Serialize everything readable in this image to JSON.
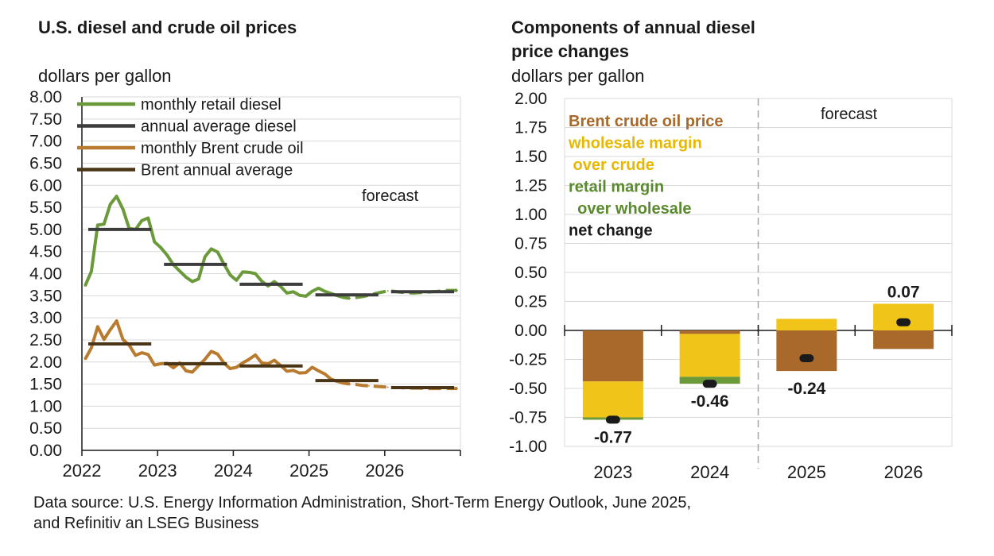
{
  "source_lines": [
    "Data source: U.S. Energy Information Administration, Short-Term Energy Outlook, June 2025,",
    "and Refinitiv an LSEG Business"
  ],
  "colors": {
    "retail": "#6a9a3a",
    "annual_diesel": "#3d3d3d",
    "brent": "#b87b2f",
    "brent_annual": "#4a3517",
    "crude_bar": "#a8692b",
    "wholesale_bar": "#f0c419",
    "retail_bar": "#6a9a3a",
    "net_marker": "#1a1a1a",
    "crude_text": "#a8692b",
    "wholesale_text": "#e8b800",
    "retail_text": "#5a8a2e"
  },
  "chart_data": [
    {
      "type": "line",
      "title": "U.S. diesel and crude oil prices",
      "ylabel": "dollars per gallon",
      "ylim": [
        0,
        8
      ],
      "yticks": [
        "0.00",
        "0.50",
        "1.00",
        "1.50",
        "2.00",
        "2.50",
        "3.00",
        "3.50",
        "4.00",
        "4.50",
        "5.00",
        "5.50",
        "6.00",
        "6.50",
        "7.00",
        "7.50",
        "8.00"
      ],
      "xlim": [
        2022,
        2027
      ],
      "xticks": [
        "2022",
        "2023",
        "2024",
        "2025",
        "2026"
      ],
      "forecast_label": "forecast",
      "forecast_start": 2025.4,
      "series": [
        {
          "name": "monthly retail diesel",
          "style": "monthly",
          "color_key": "retail",
          "values": [
            3.72,
            4.05,
            5.1,
            5.12,
            5.57,
            5.75,
            5.46,
            5.02,
            5.0,
            5.2,
            5.26,
            4.72,
            4.59,
            4.42,
            4.2,
            4.06,
            3.92,
            3.82,
            3.88,
            4.38,
            4.56,
            4.49,
            4.22,
            3.97,
            3.85,
            4.04,
            4.03,
            4.0,
            3.83,
            3.72,
            3.82,
            3.71,
            3.56,
            3.59,
            3.51,
            3.49,
            3.6,
            3.67,
            3.6,
            3.55,
            3.5,
            3.46,
            3.44,
            3.46,
            3.48,
            3.51,
            3.55,
            3.58,
            3.61,
            3.6,
            3.58,
            3.57,
            3.56,
            3.57,
            3.58,
            3.59,
            3.6,
            3.62,
            3.62,
            3.62
          ]
        },
        {
          "name": "annual average diesel",
          "style": "annual",
          "color_key": "annual_diesel",
          "values": [
            5.0,
            4.21,
            3.76,
            3.52,
            3.59
          ]
        },
        {
          "name": "monthly Brent crude oil",
          "style": "monthly",
          "color_key": "brent",
          "values": [
            2.06,
            2.32,
            2.8,
            2.51,
            2.73,
            2.93,
            2.51,
            2.38,
            2.15,
            2.21,
            2.17,
            1.93,
            1.96,
            1.97,
            1.87,
            1.98,
            1.8,
            1.77,
            1.92,
            2.06,
            2.24,
            2.18,
            1.98,
            1.85,
            1.88,
            1.98,
            2.06,
            2.16,
            1.98,
            1.96,
            2.04,
            1.92,
            1.79,
            1.81,
            1.75,
            1.76,
            1.88,
            1.8,
            1.73,
            1.61,
            1.56,
            1.52,
            1.5,
            1.49,
            1.47,
            1.46,
            1.45,
            1.44,
            1.43,
            1.42,
            1.42,
            1.41,
            1.41,
            1.41,
            1.4,
            1.4,
            1.4,
            1.4,
            1.4,
            1.4
          ]
        },
        {
          "name": "Brent annual average",
          "style": "annual",
          "color_key": "brent_annual",
          "values": [
            2.41,
            1.96,
            1.91,
            1.58,
            1.42
          ]
        }
      ]
    },
    {
      "type": "stacked-bar",
      "title_lines": [
        "Components of annual diesel",
        "price changes"
      ],
      "ylabel": "dollars per gallon",
      "ylim": [
        -1.0,
        2.0
      ],
      "yticks": [
        "-1.00",
        "-0.75",
        "-0.50",
        "-0.25",
        "0.00",
        "0.25",
        "0.50",
        "0.75",
        "1.00",
        "1.25",
        "1.50",
        "1.75",
        "2.00"
      ],
      "categories": [
        "2023",
        "2024",
        "2025",
        "2026"
      ],
      "forecast_label": "forecast",
      "legend_lines": [
        {
          "text": "Brent crude oil price",
          "color_key": "crude_text"
        },
        {
          "text": "wholesale margin",
          "color_key": "wholesale_text"
        },
        {
          "text": " over crude",
          "color_key": "wholesale_text"
        },
        {
          "text": "retail margin",
          "color_key": "retail_text"
        },
        {
          "text": "  over wholesale",
          "color_key": "retail_text"
        },
        {
          "text": "net change",
          "color_key": "net_marker"
        }
      ],
      "series": [
        {
          "name": "Brent crude oil price",
          "color_key": "crude_bar",
          "values": [
            -0.44,
            -0.03,
            -0.35,
            -0.16
          ]
        },
        {
          "name": "wholesale margin over crude",
          "color_key": "wholesale_bar",
          "values": [
            -0.31,
            -0.37,
            0.1,
            0.23
          ]
        },
        {
          "name": "retail margin over wholesale",
          "color_key": "retail_bar",
          "values": [
            -0.02,
            -0.06,
            0.0,
            0.0
          ]
        }
      ],
      "net_change": [
        -0.77,
        -0.46,
        -0.24,
        0.07
      ],
      "net_labels": [
        "-0.77",
        "-0.46",
        "-0.24",
        "0.07"
      ]
    }
  ]
}
